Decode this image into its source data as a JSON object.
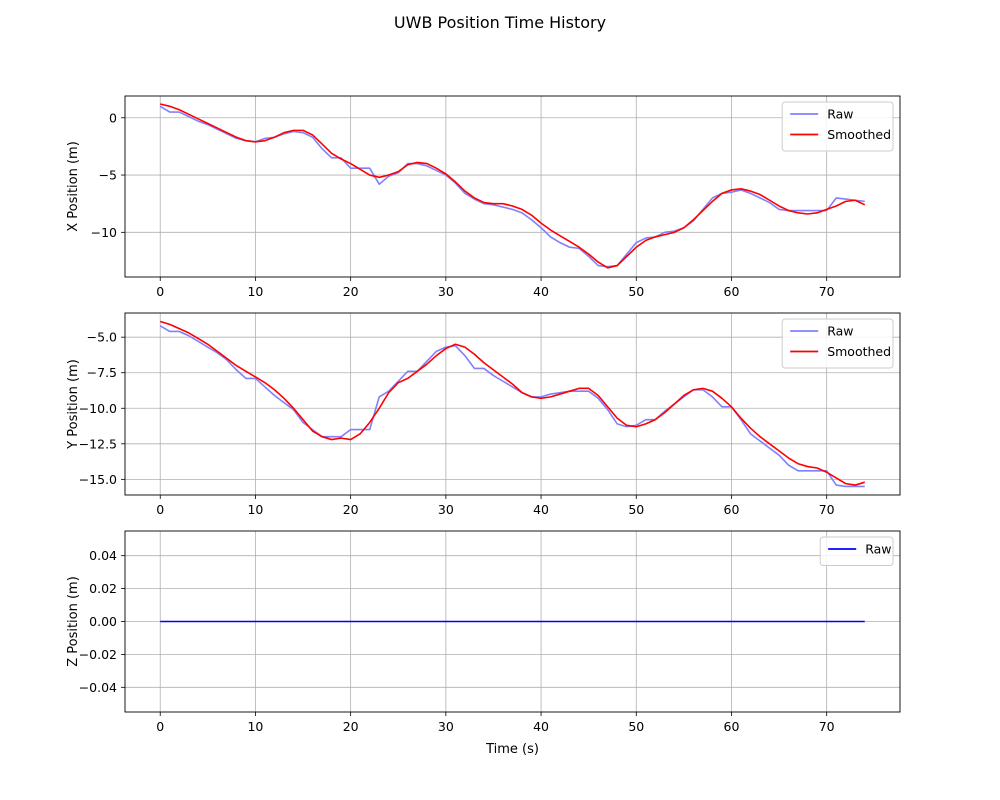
{
  "title": "UWB Position Time History",
  "chart_data": [
    {
      "type": "line",
      "ylabel": "X Position (m)",
      "xlabel": "",
      "xlim": [
        -3.7,
        77.7
      ],
      "ylim": [
        -13.9,
        1.9
      ],
      "xticks": [
        0,
        10,
        20,
        30,
        40,
        50,
        60,
        70
      ],
      "xtick_labels": [
        "0",
        "10",
        "20",
        "30",
        "40",
        "50",
        "60",
        "70"
      ],
      "yticks": [
        0,
        -5,
        -10
      ],
      "ytick_labels": [
        "0",
        "−5",
        "−10"
      ],
      "grid": true,
      "legend": "top-right",
      "x": [
        0,
        1,
        2,
        3,
        4,
        5,
        6,
        7,
        8,
        9,
        10,
        11,
        12,
        13,
        14,
        15,
        16,
        17,
        18,
        19,
        20,
        21,
        22,
        23,
        24,
        25,
        26,
        27,
        28,
        29,
        30,
        31,
        32,
        33,
        34,
        35,
        36,
        37,
        38,
        39,
        40,
        41,
        42,
        43,
        44,
        45,
        46,
        47,
        48,
        49,
        50,
        51,
        52,
        53,
        54,
        55,
        56,
        57,
        58,
        59,
        60,
        61,
        62,
        63,
        64,
        65,
        66,
        67,
        68,
        69,
        70,
        71,
        72,
        73,
        74
      ],
      "series": [
        {
          "name": "Raw",
          "color": "#8080ff",
          "values": [
            1.0,
            0.5,
            0.5,
            0.1,
            -0.3,
            -0.6,
            -1.0,
            -1.4,
            -1.8,
            -2.0,
            -2.1,
            -1.8,
            -1.7,
            -1.4,
            -1.2,
            -1.3,
            -1.7,
            -2.7,
            -3.5,
            -3.5,
            -4.4,
            -4.4,
            -4.4,
            -5.8,
            -5.1,
            -4.8,
            -4.0,
            -4.0,
            -4.2,
            -4.6,
            -5.0,
            -5.7,
            -6.6,
            -7.1,
            -7.5,
            -7.6,
            -7.8,
            -8.0,
            -8.3,
            -8.9,
            -9.6,
            -10.4,
            -10.9,
            -11.3,
            -11.4,
            -12.1,
            -12.9,
            -13.0,
            -12.9,
            -11.9,
            -10.9,
            -10.5,
            -10.4,
            -10.0,
            -9.9,
            -9.6,
            -9.0,
            -8.0,
            -7.0,
            -6.6,
            -6.5,
            -6.3,
            -6.6,
            -7.0,
            -7.4,
            -8.0,
            -8.1,
            -8.1,
            -8.1,
            -8.1,
            -8.1,
            -7.0,
            -7.1,
            -7.2,
            -7.3
          ]
        },
        {
          "name": "Smoothed",
          "color": "#ff0000",
          "values": [
            1.2,
            1.0,
            0.7,
            0.3,
            -0.1,
            -0.5,
            -0.9,
            -1.3,
            -1.7,
            -2.0,
            -2.1,
            -2.0,
            -1.7,
            -1.3,
            -1.1,
            -1.1,
            -1.5,
            -2.3,
            -3.1,
            -3.6,
            -4.0,
            -4.5,
            -5.0,
            -5.2,
            -5.0,
            -4.7,
            -4.1,
            -3.9,
            -4.0,
            -4.4,
            -4.9,
            -5.6,
            -6.4,
            -7.0,
            -7.4,
            -7.5,
            -7.5,
            -7.7,
            -8.0,
            -8.5,
            -9.2,
            -9.8,
            -10.3,
            -10.8,
            -11.3,
            -11.9,
            -12.6,
            -13.1,
            -12.9,
            -12.1,
            -11.3,
            -10.7,
            -10.4,
            -10.2,
            -10.0,
            -9.6,
            -8.9,
            -8.1,
            -7.3,
            -6.6,
            -6.3,
            -6.2,
            -6.4,
            -6.7,
            -7.2,
            -7.7,
            -8.1,
            -8.3,
            -8.4,
            -8.3,
            -8.0,
            -7.7,
            -7.3,
            -7.2,
            -7.6
          ]
        }
      ]
    },
    {
      "type": "line",
      "ylabel": "Y Position (m)",
      "xlabel": "",
      "xlim": [
        -3.7,
        77.7
      ],
      "ylim": [
        -16.1,
        -3.3
      ],
      "xticks": [
        0,
        10,
        20,
        30,
        40,
        50,
        60,
        70
      ],
      "xtick_labels": [
        "0",
        "10",
        "20",
        "30",
        "40",
        "50",
        "60",
        "70"
      ],
      "yticks": [
        -5,
        -7.5,
        -10,
        -12.5,
        -15
      ],
      "ytick_labels": [
        "−5.0",
        "−7.5",
        "−10.0",
        "−12.5",
        "−15.0"
      ],
      "grid": true,
      "legend": "top-right",
      "x": [
        0,
        1,
        2,
        3,
        4,
        5,
        6,
        7,
        8,
        9,
        10,
        11,
        12,
        13,
        14,
        15,
        16,
        17,
        18,
        19,
        20,
        21,
        22,
        23,
        24,
        25,
        26,
        27,
        28,
        29,
        30,
        31,
        32,
        33,
        34,
        35,
        36,
        37,
        38,
        39,
        40,
        41,
        42,
        43,
        44,
        45,
        46,
        47,
        48,
        49,
        50,
        51,
        52,
        53,
        54,
        55,
        56,
        57,
        58,
        59,
        60,
        61,
        62,
        63,
        64,
        65,
        66,
        67,
        68,
        69,
        70,
        71,
        72,
        73,
        74
      ],
      "series": [
        {
          "name": "Raw",
          "color": "#8080ff",
          "values": [
            -4.2,
            -4.6,
            -4.6,
            -4.9,
            -5.3,
            -5.7,
            -6.1,
            -6.6,
            -7.3,
            -7.9,
            -7.9,
            -8.5,
            -9.1,
            -9.6,
            -10.1,
            -11.0,
            -11.5,
            -12.0,
            -12.0,
            -12.0,
            -11.5,
            -11.5,
            -11.5,
            -9.2,
            -8.8,
            -8.1,
            -7.4,
            -7.4,
            -6.7,
            -6.0,
            -5.7,
            -5.6,
            -6.3,
            -7.2,
            -7.2,
            -7.7,
            -8.1,
            -8.5,
            -8.9,
            -9.2,
            -9.2,
            -9.0,
            -8.9,
            -8.8,
            -8.8,
            -8.8,
            -9.3,
            -10.1,
            -11.1,
            -11.3,
            -11.2,
            -10.8,
            -10.8,
            -10.2,
            -9.7,
            -9.2,
            -8.7,
            -8.7,
            -9.2,
            -9.9,
            -9.9,
            -10.8,
            -11.8,
            -12.3,
            -12.8,
            -13.3,
            -14.0,
            -14.4,
            -14.4,
            -14.4,
            -14.4,
            -15.4,
            -15.5,
            -15.5,
            -15.5
          ]
        },
        {
          "name": "Smoothed",
          "color": "#ff0000",
          "values": [
            -3.9,
            -4.1,
            -4.4,
            -4.7,
            -5.1,
            -5.5,
            -6.0,
            -6.5,
            -7.0,
            -7.4,
            -7.8,
            -8.2,
            -8.7,
            -9.3,
            -10.0,
            -10.8,
            -11.6,
            -12.0,
            -12.2,
            -12.1,
            -12.2,
            -11.8,
            -11.0,
            -10.0,
            -8.9,
            -8.2,
            -7.9,
            -7.4,
            -6.9,
            -6.3,
            -5.8,
            -5.5,
            -5.7,
            -6.2,
            -6.8,
            -7.3,
            -7.8,
            -8.3,
            -8.9,
            -9.2,
            -9.3,
            -9.2,
            -9.0,
            -8.8,
            -8.6,
            -8.6,
            -9.1,
            -9.9,
            -10.7,
            -11.2,
            -11.3,
            -11.1,
            -10.8,
            -10.3,
            -9.7,
            -9.1,
            -8.7,
            -8.6,
            -8.8,
            -9.3,
            -9.9,
            -10.7,
            -11.4,
            -12.0,
            -12.5,
            -13.0,
            -13.5,
            -13.9,
            -14.1,
            -14.2,
            -14.5,
            -14.9,
            -15.3,
            -15.4,
            -15.2
          ]
        }
      ]
    },
    {
      "type": "line",
      "ylabel": "Z Position (m)",
      "xlabel": "Time (s)",
      "xlim": [
        -3.7,
        77.7
      ],
      "ylim": [
        -0.055,
        0.055
      ],
      "xticks": [
        0,
        10,
        20,
        30,
        40,
        50,
        60,
        70
      ],
      "xtick_labels": [
        "0",
        "10",
        "20",
        "30",
        "40",
        "50",
        "60",
        "70"
      ],
      "yticks": [
        0.04,
        0.02,
        0,
        -0.02,
        -0.04
      ],
      "ytick_labels": [
        "0.04",
        "0.02",
        "0.00",
        "−0.02",
        "−0.04"
      ],
      "grid": true,
      "legend": "top-right",
      "x": [
        0,
        74
      ],
      "series": [
        {
          "name": "Raw",
          "color": "#0000ff",
          "values": [
            0,
            0
          ]
        }
      ]
    }
  ]
}
